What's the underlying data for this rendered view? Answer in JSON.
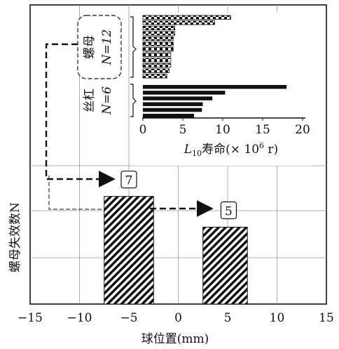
{
  "chart_data": [
    {
      "type": "bar",
      "xlabel": "球位置(mm)",
      "ylabel": "螺母失效数N",
      "xlim": [
        -15,
        15
      ],
      "xticks": [
        -15,
        -10,
        -5,
        0,
        5,
        10,
        15
      ],
      "grid": true,
      "series": [
        {
          "x": -5,
          "x_range": [
            -7.5,
            -2.5
          ],
          "value": 7,
          "label": "7",
          "hatch": "diagonal"
        },
        {
          "x": 5,
          "x_range": [
            2.5,
            7
          ],
          "value": 5,
          "label": "5",
          "hatch": "diagonal"
        }
      ]
    },
    {
      "type": "bar",
      "orientation": "horizontal",
      "xlabel_main": "L",
      "xlabel_sub": "10",
      "xlabel_rest": "寿命(× 10",
      "xlabel_sup": "6",
      "xlabel_end": " r)",
      "xlim": [
        0,
        20
      ],
      "xticks": [
        0,
        5,
        10,
        15,
        20
      ],
      "groups": [
        {
          "name_cn": "螺母",
          "count_label": "N=12",
          "style": "hatched",
          "values": [
            11,
            9,
            4,
            4,
            3.8,
            3.8,
            3.8,
            3.5,
            3.5,
            3.5,
            3.3,
            3
          ]
        },
        {
          "name_cn": "丝杠",
          "count_label": "N=6",
          "style": "solid",
          "values": [
            18,
            10.3,
            8.7,
            7.5,
            7.4,
            6.4
          ]
        }
      ]
    }
  ]
}
